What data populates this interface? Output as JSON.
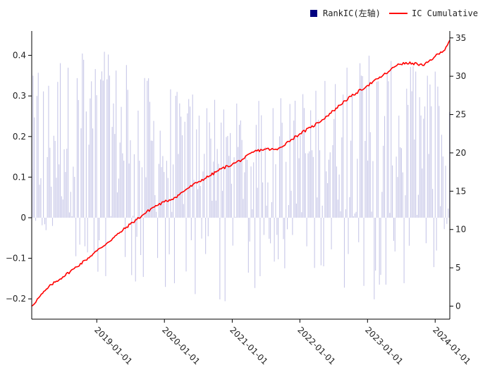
{
  "chart_data": {
    "type": "bar+line",
    "title": "",
    "legend": {
      "placement": "top-right",
      "items": [
        {
          "label": "RankIC(左轴)",
          "kind": "bar",
          "color": "#000080"
        },
        {
          "label": "IC Cumulative",
          "kind": "line",
          "color": "#ff0000"
        }
      ]
    },
    "x_axis": {
      "type": "date",
      "range": [
        "2018-01-15",
        "2024-03-20"
      ],
      "tick_labels": [
        "2019-01-01",
        "2020-01-01",
        "2021-01-01",
        "2022-01-01",
        "2023-01-01",
        "2024-01-01"
      ],
      "tick_label_rotation": 45
    },
    "y_axis_left": {
      "range": [
        -0.25,
        0.46
      ],
      "ticks": [
        -0.2,
        -0.1,
        0,
        0.1,
        0.2,
        0.3,
        0.4
      ],
      "tick_labels": [
        "−0.2",
        "−0.1",
        "0",
        "0.1",
        "0.2",
        "0.3",
        "0.4"
      ]
    },
    "y_axis_right": {
      "range": [
        -1.7,
        35.9
      ],
      "ticks": [
        0,
        5,
        10,
        15,
        20,
        25,
        30,
        35
      ],
      "tick_labels": [
        "0",
        "5",
        "10",
        "15",
        "20",
        "25",
        "30",
        "35"
      ]
    },
    "grid": false,
    "series": [
      {
        "name": "RankIC(左轴)",
        "axis": "left",
        "kind": "bar",
        "color": "#c8c8e8",
        "sampling": "weekly",
        "approximate": true,
        "x": [
          "2018-01-15",
          "2019-01-01",
          "2020-01-01",
          "2021-01-01",
          "2022-01-01",
          "2023-01-01",
          "2024-01-01",
          "2024-03-20"
        ],
        "envelope_max": [
          0.35,
          0.42,
          0.32,
          0.28,
          0.3,
          0.4,
          0.36,
          0.3
        ],
        "envelope_min": [
          0.0,
          -0.14,
          -0.17,
          -0.21,
          -0.1,
          -0.21,
          -0.12,
          0.0
        ]
      },
      {
        "name": "IC Cumulative",
        "axis": "right",
        "kind": "line",
        "color": "#ff0000",
        "x": [
          "2018-01-15",
          "2018-03-01",
          "2018-05-01",
          "2018-07-01",
          "2018-09-01",
          "2018-11-01",
          "2019-01-01",
          "2019-03-01",
          "2019-05-01",
          "2019-07-01",
          "2019-09-01",
          "2019-11-01",
          "2020-01-01",
          "2020-03-01",
          "2020-05-01",
          "2020-07-01",
          "2020-09-01",
          "2020-11-01",
          "2021-01-01",
          "2021-03-01",
          "2021-05-01",
          "2021-07-01",
          "2021-09-01",
          "2021-11-01",
          "2022-01-01",
          "2022-03-01",
          "2022-05-01",
          "2022-07-01",
          "2022-09-01",
          "2022-11-01",
          "2023-01-01",
          "2023-03-01",
          "2023-05-01",
          "2023-06-15",
          "2023-09-01",
          "2023-11-01",
          "2024-01-01",
          "2024-02-15",
          "2024-03-20"
        ],
        "y": [
          0.0,
          1.3,
          2.8,
          3.8,
          4.9,
          6.0,
          7.2,
          8.3,
          9.5,
          10.7,
          11.8,
          12.9,
          13.6,
          14.2,
          15.3,
          16.2,
          17.0,
          17.9,
          18.5,
          19.2,
          20.2,
          20.5,
          20.4,
          21.5,
          22.5,
          23.3,
          24.3,
          25.5,
          26.8,
          27.8,
          28.8,
          29.7,
          30.7,
          31.6,
          31.7,
          31.4,
          32.6,
          33.3,
          34.7
        ]
      }
    ]
  }
}
